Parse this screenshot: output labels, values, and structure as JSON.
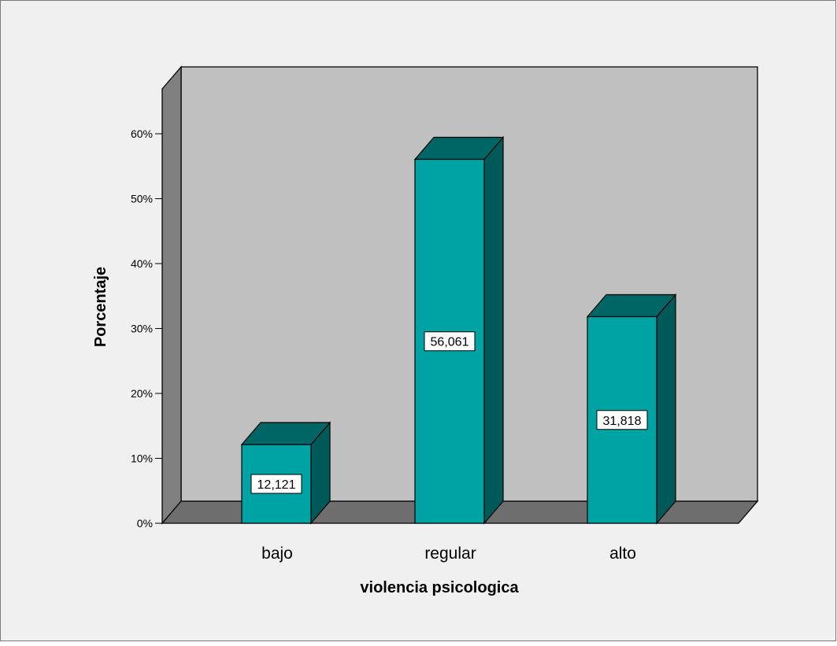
{
  "chart_data": {
    "type": "bar",
    "categories": [
      "bajo",
      "regular",
      "alto"
    ],
    "values": [
      12.121,
      56.061,
      31.818
    ],
    "data_labels": [
      "12,121",
      "56,061",
      "31,818"
    ],
    "xlabel": "violencia psicologica",
    "ylabel": "Porcentaje",
    "ylim": [
      0,
      60
    ],
    "yticks": [
      0,
      10,
      20,
      30,
      40,
      50,
      60
    ],
    "ytick_labels": [
      "0%",
      "10%",
      "20%",
      "30%",
      "40%",
      "50%",
      "60%"
    ],
    "style": "3d",
    "grid": false,
    "colors": {
      "bar_front": "#00A3A3",
      "bar_top": "#006565",
      "bar_side": "#005959",
      "plot_back": "#C0C0C0",
      "plot_floor": "#6E6E6E",
      "plot_left_wall": "#808080",
      "chart_background": "#F0F0F0"
    }
  }
}
